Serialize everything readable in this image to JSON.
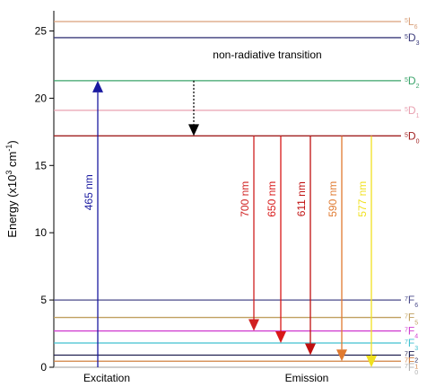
{
  "chart_data": {
    "type": "energy-levels",
    "ylabel": [
      "Energy (x10",
      "3",
      " cm",
      "-1",
      ")"
    ],
    "ylim": [
      0,
      26.5
    ],
    "yticks": [
      0,
      5,
      10,
      15,
      20,
      25
    ],
    "levels": [
      {
        "sup": "5",
        "letter": "L",
        "sub": "6",
        "energy": 25.7,
        "color": "#d9a07a"
      },
      {
        "sup": "5",
        "letter": "D",
        "sub": "3",
        "energy": 24.5,
        "color": "#3a3a7a"
      },
      {
        "sup": "5",
        "letter": "D",
        "sub": "2",
        "energy": 21.3,
        "color": "#3aa36a"
      },
      {
        "sup": "5",
        "letter": "D",
        "sub": "1",
        "energy": 19.1,
        "color": "#e8a0b0"
      },
      {
        "sup": "5",
        "letter": "D",
        "sub": "0",
        "energy": 17.2,
        "color": "#a02020"
      },
      {
        "sup": "7",
        "letter": "F",
        "sub": "6",
        "energy": 5.0,
        "color": "#4a4a8a"
      },
      {
        "sup": "7",
        "letter": "F",
        "sub": "5",
        "energy": 3.7,
        "color": "#c0a060"
      },
      {
        "sup": "7",
        "letter": "F",
        "sub": "4",
        "energy": 2.7,
        "color": "#d040d0"
      },
      {
        "sup": "7",
        "letter": "F",
        "sub": "3",
        "energy": 1.8,
        "color": "#40c0d0"
      },
      {
        "sup": "7",
        "letter": "F",
        "sub": "2",
        "energy": 0.9,
        "color": "#202050"
      },
      {
        "sup": "7",
        "letter": "F",
        "sub": "1",
        "energy": 0.45,
        "color": "#d08040"
      },
      {
        "sup": "7",
        "letter": "F",
        "sub": "0",
        "energy": 0,
        "color": "#b0b0b0"
      }
    ],
    "excitation": {
      "label": "465 nm",
      "start": 0,
      "end": 21.3,
      "color": "#1a1aa0"
    },
    "nonradiative": {
      "label": "non-radiative transition",
      "start": 21.3,
      "end": 17.2,
      "color": "#000000"
    },
    "emissions": [
      {
        "label": "700 nm",
        "start": 17.2,
        "end": 2.7,
        "color": "#d02020"
      },
      {
        "label": "650 nm",
        "start": 17.2,
        "end": 1.8,
        "color": "#d81818"
      },
      {
        "label": "611 nm",
        "start": 17.2,
        "end": 0.9,
        "color": "#c01010"
      },
      {
        "label": "590 nm",
        "start": 17.2,
        "end": 0.45,
        "color": "#e07a30"
      },
      {
        "label": "577 nm",
        "start": 17.2,
        "end": 0,
        "color": "#f0e020"
      }
    ],
    "group_labels": [
      "Excitation",
      "Emission"
    ]
  }
}
